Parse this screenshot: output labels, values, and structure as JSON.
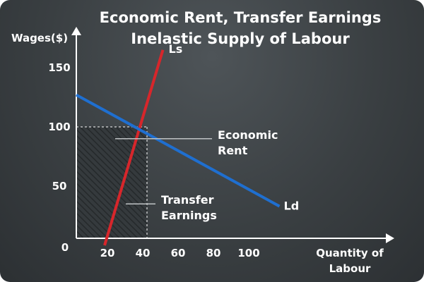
{
  "chart_data": {
    "type": "line",
    "title": "Economic Rent, Transfer Earnings",
    "subtitle": "Inelastic Supply of Labour",
    "ylabel": "Wages($)",
    "xlabel": [
      "Quantity of",
      "Labour"
    ],
    "origin_label": "0",
    "xlim": [
      0,
      100
    ],
    "ylim": [
      0,
      150
    ],
    "x_ticks": [
      20,
      40,
      60,
      80,
      100
    ],
    "y_ticks": [
      50,
      100,
      150
    ],
    "series": [
      {
        "name": "Ls",
        "color": "#d7262b",
        "points": [
          [
            16,
            0
          ],
          [
            49,
            165
          ]
        ]
      },
      {
        "name": "Ld",
        "color": "#1f6fd0",
        "points": [
          [
            0,
            127
          ],
          [
            115,
            33
          ]
        ]
      }
    ],
    "equilibrium": {
      "x": 40,
      "y": 100
    },
    "annotations": [
      {
        "lines": [
          "Economic",
          "Rent"
        ],
        "at": [
          22,
          90
        ],
        "label_x": 80
      },
      {
        "lines": [
          "Transfer",
          "Earnings"
        ],
        "at": [
          28,
          35
        ],
        "label_x": 48
      }
    ],
    "regions": [
      {
        "name": "transfer-earnings",
        "x_range": [
          0,
          40
        ],
        "y_range": [
          0,
          100
        ],
        "pattern": "hatched"
      },
      {
        "name": "economic-rent",
        "pattern": "none"
      }
    ],
    "colors": {
      "axes": "#ffffff",
      "background": "#3d4245",
      "hatch": "#2b3033",
      "guide": "#bfc3c5"
    }
  }
}
